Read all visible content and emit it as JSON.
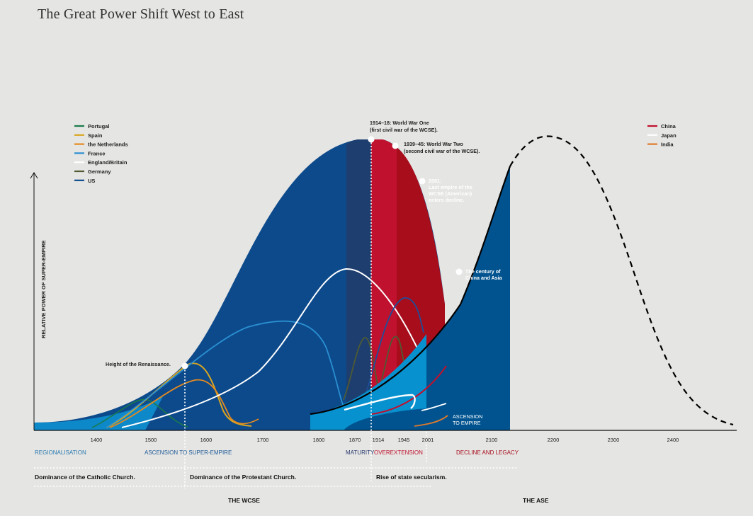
{
  "title": "The Great Power Shift West to East",
  "chart_data": {
    "type": "area",
    "title": "The Great Power Shift West to East",
    "ylabel": "RELATIVE POWER OF SUPER-EMPIRE",
    "xlabel": "",
    "x_ticks": [
      "1400",
      "1500",
      "1600",
      "1700",
      "1800",
      "1870",
      "1914",
      "1945",
      "2001",
      "2100",
      "2200",
      "2300",
      "2400"
    ],
    "legend_west": [
      {
        "name": "Portugal",
        "color": "#1a7a4a"
      },
      {
        "name": "Spain",
        "color": "#d9a51f"
      },
      {
        "name": "the Netherlands",
        "color": "#e58a1f"
      },
      {
        "name": "France",
        "color": "#2a8fd0"
      },
      {
        "name": "England/Britain",
        "color": "#ffffff"
      },
      {
        "name": "Germany",
        "color": "#4f5a33"
      },
      {
        "name": "US",
        "color": "#0c4a8c"
      }
    ],
    "legend_east": [
      {
        "name": "China",
        "color": "#c0112e"
      },
      {
        "name": "Japan",
        "color": "#ffffff"
      },
      {
        "name": "India",
        "color": "#e07a2c"
      }
    ],
    "annotations": {
      "renaissance": "Height of the Renaissance.",
      "ww1_line1": "1914–18: World War One",
      "ww1_line2": "(first civil war of the WCSE).",
      "ww2_line1": "1939–45: World War Two",
      "ww2_line2": "(second civil war of the WCSE).",
      "y2001_line1": "2001:",
      "y2001_line2": "Last empire of the",
      "y2001_line3": "WCSE (American)",
      "y2001_line4": "enters decline.",
      "century_line1": "The century of",
      "century_line2": "China and Asia",
      "ascension_line1": "ASCENSION",
      "ascension_line2": "TO EMPIRE"
    },
    "phases": {
      "regionalisation": "REGIONALISATION",
      "ascension": "ASCENSION TO SUPER-EMPIRE",
      "maturity": "MATURITY",
      "overextension": "OVEREXTENSION",
      "decline": "DECLINE AND LEGACY"
    },
    "eras": {
      "catholic": "Dominance of the Catholic Church.",
      "protestant": "Dominance of the Protestant Church.",
      "secular": "Rise of state secularism."
    },
    "sections": {
      "wcse": "THE WCSE",
      "ase": "THE ASE"
    },
    "colors": {
      "background": "#e5e5e3",
      "wcse_blue": "#0c4a8c",
      "wcse_light": "#0d88c8",
      "maturity_dark": "#1d3e6e",
      "overextension_red": "#c0112e",
      "decline_red": "#a80d1c",
      "ase_blue": "#00538f",
      "ase_light": "#0891cf"
    }
  }
}
